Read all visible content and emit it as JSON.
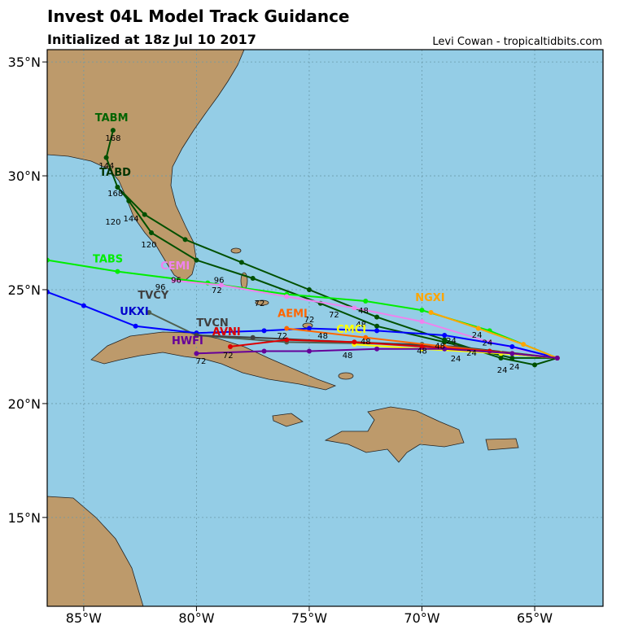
{
  "map": {
    "title": "Invest 04L Model Track Guidance",
    "subtitle": "Initialized at 18z Jul 10 2017",
    "credit": "Levi Cowan - tropicaltidbits.com",
    "xlim": [
      -86.62,
      -61.97
    ],
    "ylim": [
      11.1,
      35.54
    ],
    "xticks": [
      {
        "value": -85,
        "label": "85°W"
      },
      {
        "value": -80,
        "label": "80°W"
      },
      {
        "value": -75,
        "label": "75°W"
      },
      {
        "value": -70,
        "label": "70°W"
      },
      {
        "value": -65,
        "label": "65°W"
      }
    ],
    "yticks": [
      {
        "value": 15,
        "label": "15°N"
      },
      {
        "value": 20,
        "label": "20°N"
      },
      {
        "value": 25,
        "label": "25°N"
      },
      {
        "value": 30,
        "label": "30°N"
      },
      {
        "value": 35,
        "label": "35°N"
      }
    ],
    "grid": true,
    "tracks": [
      {
        "name": "TABM",
        "color": "#005000",
        "label_color": "#006400",
        "label_lon": -84.5,
        "label_lat": 32.4,
        "lons": [
          -64,
          -65,
          -66.5,
          -69,
          -72,
          -75,
          -78,
          -80.5,
          -82.3,
          -83.5,
          -84,
          -83.7
        ],
        "lats": [
          22,
          21.7,
          22,
          22.8,
          23.8,
          25,
          26.2,
          27.2,
          28.3,
          29.5,
          30.8,
          32.0
        ]
      },
      {
        "name": "TABD",
        "color": "#005000",
        "label_color": "#003300",
        "label_lon": -84.3,
        "label_lat": 30.0,
        "lons": [
          -64,
          -66,
          -69,
          -72,
          -74.5,
          -77.5,
          -80,
          -82,
          -83,
          -83.5
        ],
        "lats": [
          22,
          22,
          22.7,
          23.4,
          24.4,
          25.5,
          26.3,
          27.5,
          28.9,
          29.5
        ]
      },
      {
        "name": "TABS",
        "color": "#00ee00",
        "label_color": "#00ee00",
        "label_lon": -84.6,
        "label_lat": 26.2,
        "lons": [
          -64,
          -67,
          -70,
          -72.5,
          -76,
          -79.5,
          -83.5,
          -86.62
        ],
        "lats": [
          22,
          23.2,
          24.1,
          24.5,
          24.8,
          25.3,
          25.8,
          26.3
        ]
      },
      {
        "name": "CEMI",
        "color": "#ee82ee",
        "label_color": "#ee82ee",
        "label_lon": -81.6,
        "label_lat": 25.9,
        "lons": [
          -64,
          -67,
          -70,
          -73,
          -76,
          -78.9,
          -81
        ],
        "lats": [
          22,
          22.7,
          23.6,
          24.2,
          24.7,
          25.2,
          25.4
        ]
      },
      {
        "name": "TVCY",
        "color": "#506050",
        "label_color": "#404040",
        "label_lon": -82.6,
        "label_lat": 24.6,
        "lons": [
          -64,
          -70,
          -76,
          -80,
          -82.1
        ],
        "lats": [
          22,
          22.6,
          22.7,
          23.0,
          24.0
        ]
      },
      {
        "name": "UKXI",
        "color": "#0000ff",
        "label_color": "#0000cc",
        "label_lon": -83.4,
        "label_lat": 23.9,
        "lons": [
          -64,
          -66,
          -69,
          -72,
          -75,
          -77,
          -80,
          -82.7,
          -85,
          -86.62
        ],
        "lats": [
          22,
          22.5,
          23,
          23.2,
          23.3,
          23.2,
          23.1,
          23.4,
          24.3,
          24.9
        ]
      },
      {
        "name": "TVCN",
        "color": "#404040",
        "label_color": "#404040",
        "label_lon": -80.0,
        "label_lat": 23.4,
        "lons": [
          -64,
          -68.5,
          -73,
          -77.5,
          -80
        ],
        "lats": [
          22,
          22.5,
          22.7,
          22.9,
          23.0
        ]
      },
      {
        "name": "NGXI",
        "color": "#ffa500",
        "label_color": "#ffa500",
        "label_lon": -70.3,
        "label_lat": 24.5,
        "lons": [
          -64,
          -65.5,
          -67.5,
          -69.6
        ],
        "lats": [
          22,
          22.6,
          23.3,
          24.0
        ]
      },
      {
        "name": "AEMI",
        "color": "#ff6600",
        "label_color": "#ff6600",
        "label_lon": -76.4,
        "label_lat": 23.8,
        "lons": [
          -64,
          -66,
          -69,
          -72.5,
          -76
        ],
        "lats": [
          22,
          22.2,
          22.5,
          22.9,
          23.3
        ]
      },
      {
        "name": "CMCI",
        "color": "#ffff00",
        "label_color": "#ffff00",
        "label_lon": -73.8,
        "label_lat": 23.1,
        "lons": [
          -64,
          -66.5,
          -70,
          -73
        ],
        "lats": [
          22,
          22.2,
          22.4,
          22.6
        ]
      },
      {
        "name": "AVNI",
        "color": "#dd0000",
        "label_color": "#dd0000",
        "label_lon": -79.3,
        "label_lat": 23.0,
        "lons": [
          -64,
          -67,
          -70,
          -73,
          -76,
          -78.5
        ],
        "lats": [
          22,
          22.3,
          22.5,
          22.7,
          22.8,
          22.5
        ]
      },
      {
        "name": "HWFI",
        "color": "#660099",
        "label_color": "#660099",
        "label_lon": -81.1,
        "label_lat": 22.6,
        "lons": [
          -64,
          -66,
          -69,
          -72,
          -75,
          -77,
          -80
        ],
        "lats": [
          22,
          22.2,
          22.4,
          22.4,
          22.3,
          22.3,
          22.2
        ]
      }
    ],
    "hour_labels": [
      {
        "hour": 168,
        "lon": -83.7,
        "lat": 31.54
      },
      {
        "hour": 144,
        "lon": -83.99,
        "lat": 30.32
      },
      {
        "hour": 168,
        "lon": -83.6,
        "lat": 29.1
      },
      {
        "hour": 120,
        "lon": -83.7,
        "lat": 27.86
      },
      {
        "hour": 144,
        "lon": -82.9,
        "lat": 28.0
      },
      {
        "hour": 120,
        "lon": -82.11,
        "lat": 26.86
      },
      {
        "hour": 96,
        "lon": -80.9,
        "lat": 25.3
      },
      {
        "hour": 96,
        "lon": -81.6,
        "lat": 25.0
      },
      {
        "hour": 96,
        "lon": -79.0,
        "lat": 25.3
      },
      {
        "hour": 72,
        "lon": -79.1,
        "lat": 24.86
      },
      {
        "hour": 72,
        "lon": -77.2,
        "lat": 24.29
      },
      {
        "hour": 72,
        "lon": -75.0,
        "lat": 23.57
      },
      {
        "hour": 72,
        "lon": -73.9,
        "lat": 23.79
      },
      {
        "hour": 48,
        "lon": -72.6,
        "lat": 23.96
      },
      {
        "hour": 48,
        "lon": -72.7,
        "lat": 23.35
      },
      {
        "hour": 48,
        "lon": -74.4,
        "lat": 22.85
      },
      {
        "hour": 72,
        "lon": -76.2,
        "lat": 22.86
      },
      {
        "hour": 48,
        "lon": -72.5,
        "lat": 22.6
      },
      {
        "hour": 48,
        "lon": -73.3,
        "lat": 22.0
      },
      {
        "hour": 48,
        "lon": -70.0,
        "lat": 22.2
      },
      {
        "hour": 48,
        "lon": -69.2,
        "lat": 22.4
      },
      {
        "hour": 24,
        "lon": -67.56,
        "lat": 22.9
      },
      {
        "hour": 24,
        "lon": -67.1,
        "lat": 22.55
      },
      {
        "hour": 24,
        "lon": -68.7,
        "lat": 22.65
      },
      {
        "hour": 24,
        "lon": -68.5,
        "lat": 21.85
      },
      {
        "hour": 24,
        "lon": -67.8,
        "lat": 22.1
      },
      {
        "hour": 24,
        "lon": -66.44,
        "lat": 21.36
      },
      {
        "hour": 24,
        "lon": -65.9,
        "lat": 21.5
      },
      {
        "hour": 72,
        "lon": -78.6,
        "lat": 22.0
      },
      {
        "hour": 72,
        "lon": -79.8,
        "lat": 21.75
      }
    ]
  }
}
